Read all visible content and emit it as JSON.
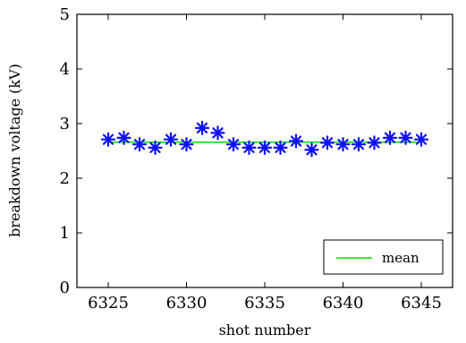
{
  "chart_data": {
    "type": "scatter",
    "xlabel": "shot number",
    "ylabel": "breakdown voltage (kV)",
    "xlim": [
      6323,
      6347
    ],
    "ylim": [
      0,
      5
    ],
    "x_ticks": [
      6325,
      6330,
      6335,
      6340,
      6345
    ],
    "y_ticks": [
      0,
      1,
      2,
      3,
      4,
      5
    ],
    "grid": false,
    "legend_position": "bottom-right",
    "series": [
      {
        "type": "scatter",
        "marker": "asterisk",
        "color": "#1010ff",
        "x": [
          6325,
          6326,
          6327,
          6328,
          6329,
          6330,
          6331,
          6332,
          6333,
          6334,
          6335,
          6336,
          6337,
          6338,
          6339,
          6340,
          6341,
          6342,
          6343,
          6344,
          6345
        ],
        "y": [
          2.71,
          2.74,
          2.62,
          2.56,
          2.71,
          2.62,
          2.92,
          2.83,
          2.62,
          2.56,
          2.56,
          2.56,
          2.68,
          2.52,
          2.65,
          2.62,
          2.62,
          2.65,
          2.74,
          2.74,
          2.71
        ]
      },
      {
        "name": "mean",
        "type": "line",
        "color": "#00e000",
        "x": [
          6325,
          6345
        ],
        "y": [
          2.66,
          2.66
        ]
      }
    ]
  }
}
